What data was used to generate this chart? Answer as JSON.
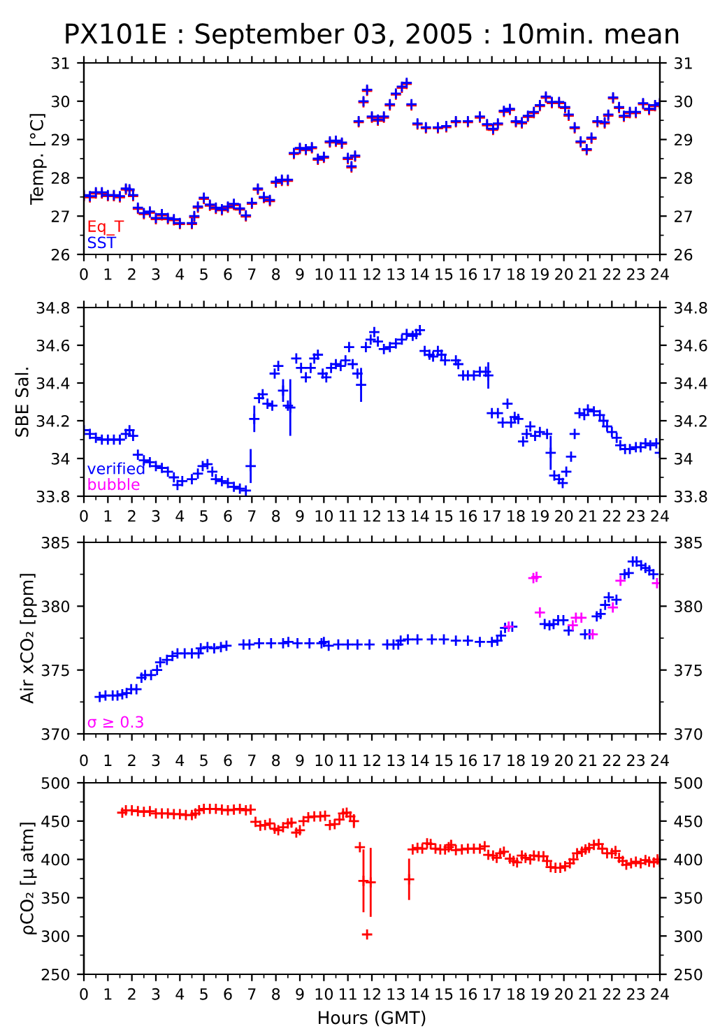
{
  "chart_data": [
    {
      "type": "scatter",
      "title": "PX101E : September 03, 2005 : 10min. mean",
      "ylabel": "Temp. [°C]",
      "marker": "cross",
      "legend": "bottom left",
      "xlim": [
        0,
        24
      ],
      "xticks": [
        0,
        1,
        2,
        3,
        4,
        5,
        6,
        7,
        8,
        9,
        10,
        11,
        12,
        13,
        14,
        15,
        16,
        17,
        18,
        19,
        20,
        21,
        22,
        23,
        24
      ],
      "ylim": [
        26,
        31
      ],
      "yticks": [
        26,
        27,
        28,
        29,
        30,
        31
      ],
      "y2lim": [
        26,
        31
      ],
      "y2ticks": [
        26,
        27,
        28,
        29,
        30,
        31
      ],
      "x": [
        0,
        0.25,
        0.5,
        0.75,
        1,
        1.25,
        1.5,
        1.75,
        1.9,
        2.05,
        2.25,
        2.5,
        2.75,
        3,
        3.25,
        3.5,
        3.75,
        4,
        4.5,
        4.6,
        4.75,
        5,
        5.25,
        5.5,
        5.75,
        6,
        6.25,
        6.5,
        6.75,
        7,
        7.25,
        7.5,
        7.75,
        8,
        8.25,
        8.5,
        8.75,
        9,
        9.25,
        9.5,
        9.75,
        10,
        10.25,
        10.5,
        10.75,
        11,
        11.15,
        11.3,
        11.45,
        11.65,
        11.8,
        12,
        12.25,
        12.5,
        12.75,
        13,
        13.25,
        13.45,
        13.65,
        13.9,
        14.25,
        14.75,
        15.1,
        15.5,
        16,
        16.5,
        16.8,
        17.05,
        17.25,
        17.5,
        17.75,
        18,
        18.25,
        18.5,
        18.75,
        19,
        19.25,
        19.5,
        19.8,
        20.05,
        20.2,
        20.45,
        20.7,
        20.95,
        21.15,
        21.4,
        21.7,
        21.85,
        22.05,
        22.3,
        22.5,
        22.75,
        23,
        23.3,
        23.55,
        23.8,
        24
      ],
      "series": [
        {
          "name": "Eq_T",
          "color": "#ff0000",
          "values": [
            27.52,
            27.49,
            27.59,
            27.59,
            27.52,
            27.52,
            27.49,
            27.69,
            27.67,
            27.52,
            27.19,
            27.05,
            27.09,
            26.92,
            27.02,
            26.92,
            26.89,
            26.79,
            26.79,
            26.97,
            27.22,
            27.45,
            27.27,
            27.19,
            27.15,
            27.22,
            27.29,
            27.17,
            26.99,
            27.32,
            27.69,
            27.47,
            27.39,
            27.87,
            27.92,
            27.92,
            28.62,
            28.75,
            28.72,
            28.77,
            28.47,
            28.52,
            28.92,
            28.94,
            28.89,
            28.49,
            28.27,
            28.55,
            29.45,
            29.97,
            30.27,
            29.57,
            29.49,
            29.57,
            29.89,
            30.17,
            30.35,
            30.45,
            29.89,
            29.39,
            29.29,
            29.29,
            29.32,
            29.45,
            29.45,
            29.57,
            29.37,
            29.25,
            29.39,
            29.72,
            29.77,
            29.45,
            29.42,
            29.59,
            29.69,
            29.87,
            30.09,
            29.95,
            29.95,
            29.82,
            29.62,
            29.29,
            28.92,
            28.72,
            29.02,
            29.45,
            29.42,
            29.62,
            30.07,
            29.82,
            29.59,
            29.69,
            29.69,
            29.92,
            29.77,
            29.87,
            29.92
          ]
        },
        {
          "name": "SST",
          "color": "#0000ff",
          "values": [
            27.55,
            27.52,
            27.62,
            27.62,
            27.55,
            27.55,
            27.52,
            27.72,
            27.7,
            27.55,
            27.22,
            27.08,
            27.12,
            26.95,
            27.05,
            26.95,
            26.92,
            26.82,
            26.82,
            27.0,
            27.25,
            27.48,
            27.3,
            27.22,
            27.18,
            27.25,
            27.32,
            27.2,
            27.02,
            27.35,
            27.72,
            27.5,
            27.42,
            27.9,
            27.95,
            27.95,
            28.65,
            28.78,
            28.75,
            28.8,
            28.5,
            28.55,
            28.95,
            28.97,
            28.92,
            28.52,
            28.3,
            28.58,
            29.48,
            30.0,
            30.3,
            29.6,
            29.52,
            29.6,
            29.92,
            30.2,
            30.38,
            30.48,
            29.92,
            29.42,
            29.32,
            29.32,
            29.35,
            29.48,
            29.48,
            29.6,
            29.4,
            29.28,
            29.42,
            29.75,
            29.8,
            29.48,
            29.45,
            29.62,
            29.72,
            29.9,
            30.12,
            29.98,
            29.98,
            29.85,
            29.65,
            29.32,
            28.95,
            28.75,
            29.05,
            29.48,
            29.45,
            29.65,
            30.1,
            29.85,
            29.62,
            29.72,
            29.72,
            29.95,
            29.8,
            29.9,
            29.95
          ]
        }
      ]
    },
    {
      "type": "scatter",
      "ylabel": "SBE Sal.",
      "marker": "cross",
      "legend": "bottom left",
      "xlim": [
        0,
        24
      ],
      "xticks": [
        0,
        1,
        2,
        3,
        4,
        5,
        6,
        7,
        8,
        9,
        10,
        11,
        12,
        13,
        14,
        15,
        16,
        17,
        18,
        19,
        20,
        21,
        22,
        23,
        24
      ],
      "ylim": [
        33.8,
        34.8
      ],
      "yticks": [
        {
          "value": 33.8,
          "label": "33.8"
        },
        {
          "value": 34,
          "label": "34"
        },
        {
          "value": 34.2,
          "label": "34.2"
        },
        {
          "value": 34.4,
          "label": "34.4"
        },
        {
          "value": 34.6,
          "label": "34.6"
        },
        {
          "value": 34.8,
          "label": "34.8"
        }
      ],
      "y2lim": [
        33.8,
        34.8
      ],
      "y2ticks": [
        {
          "value": 33.8,
          "label": "33.8"
        },
        {
          "value": 34,
          "label": "34"
        },
        {
          "value": 34.2,
          "label": "34.2"
        },
        {
          "value": 34.4,
          "label": "34.4"
        },
        {
          "value": 34.6,
          "label": "34.6"
        },
        {
          "value": 34.8,
          "label": "34.8"
        }
      ],
      "series": [
        {
          "name": "verified",
          "color": "#0000ff",
          "x": [
            0,
            0.25,
            0.5,
            0.75,
            1,
            1.25,
            1.5,
            1.75,
            1.9,
            2.05,
            2.25,
            2.5,
            2.75,
            3,
            3.25,
            3.5,
            3.75,
            3.9,
            4.1,
            4.5,
            4.75,
            4.95,
            5.15,
            5.35,
            5.5,
            5.75,
            6,
            6.25,
            6.5,
            6.75,
            6.95,
            7.1,
            7.3,
            7.45,
            7.65,
            7.85,
            7.95,
            8.1,
            8.3,
            8.5,
            8.6,
            8.85,
            9.05,
            9.25,
            9.45,
            9.6,
            9.75,
            9.95,
            10.1,
            10.3,
            10.5,
            10.7,
            10.9,
            11.05,
            11.2,
            11.4,
            11.55,
            11.75,
            11.95,
            12.1,
            12.25,
            12.5,
            12.75,
            13,
            13.25,
            13.45,
            13.7,
            13.85,
            14,
            14.2,
            14.4,
            14.55,
            14.75,
            14.9,
            15.05,
            15.5,
            15.6,
            15.8,
            16,
            16.25,
            16.5,
            16.75,
            16.85,
            17,
            17.25,
            17.45,
            17.65,
            17.8,
            17.95,
            18.1,
            18.3,
            18.45,
            18.6,
            18.8,
            19,
            19.3,
            19.45,
            19.6,
            19.8,
            19.95,
            20.1,
            20.3,
            20.45,
            20.65,
            20.85,
            21,
            21.25,
            21.5,
            21.65,
            21.8,
            22,
            22.2,
            22.35,
            22.55,
            22.75,
            23,
            23.2,
            23.4,
            23.6,
            23.85,
            24
          ],
          "values": [
            34.15,
            34.13,
            34.11,
            34.1,
            34.1,
            34.1,
            34.1,
            34.13,
            34.15,
            34.12,
            34.02,
            33.99,
            33.98,
            33.96,
            33.95,
            33.93,
            33.9,
            33.86,
            33.88,
            33.89,
            33.92,
            33.96,
            33.97,
            33.93,
            33.89,
            33.88,
            33.87,
            33.85,
            33.84,
            33.83,
            33.96,
            34.21,
            34.32,
            34.34,
            34.29,
            34.28,
            34.45,
            34.49,
            34.36,
            34.28,
            34.27,
            34.53,
            34.48,
            34.43,
            34.48,
            34.53,
            34.55,
            34.45,
            34.43,
            34.48,
            34.5,
            34.49,
            34.52,
            34.59,
            34.5,
            34.45,
            34.39,
            34.59,
            34.63,
            34.67,
            34.62,
            34.58,
            34.59,
            34.61,
            34.63,
            34.66,
            34.65,
            34.66,
            34.68,
            34.57,
            34.55,
            34.54,
            34.57,
            34.55,
            34.52,
            34.52,
            34.5,
            34.44,
            34.44,
            34.44,
            34.46,
            34.46,
            34.44,
            34.24,
            34.24,
            34.19,
            34.29,
            34.19,
            34.22,
            34.21,
            34.09,
            34.13,
            34.17,
            34.12,
            34.14,
            34.13,
            34.03,
            33.91,
            33.89,
            33.87,
            33.93,
            34.01,
            34.13,
            34.24,
            34.23,
            34.26,
            34.25,
            34.23,
            34.2,
            34.17,
            34.14,
            34.11,
            34.07,
            34.05,
            34.05,
            34.06,
            34.06,
            34.08,
            34.07,
            34.08,
            34.03
          ],
          "errors": [
            null,
            null,
            null,
            null,
            null,
            null,
            null,
            null,
            null,
            null,
            null,
            null,
            null,
            null,
            null,
            null,
            null,
            null,
            null,
            null,
            null,
            null,
            null,
            null,
            null,
            null,
            null,
            null,
            null,
            null,
            0.09,
            0.07,
            null,
            null,
            null,
            null,
            null,
            null,
            0.06,
            null,
            0.15,
            null,
            null,
            null,
            null,
            null,
            null,
            null,
            null,
            null,
            null,
            null,
            null,
            null,
            null,
            null,
            0.09,
            null,
            null,
            null,
            null,
            null,
            null,
            null,
            null,
            null,
            null,
            null,
            null,
            null,
            null,
            null,
            null,
            null,
            null,
            null,
            null,
            null,
            null,
            null,
            null,
            null,
            0.07,
            null,
            null,
            null,
            null,
            null,
            null,
            null,
            null,
            null,
            null,
            null,
            null,
            null,
            0.09,
            null,
            null,
            null,
            null,
            null,
            null,
            null,
            null,
            null,
            null,
            null,
            null,
            null,
            null,
            null,
            null,
            null,
            null,
            null,
            null,
            null,
            null,
            null,
            null
          ]
        },
        {
          "name": "bubble",
          "color": "#ff00ff"
        }
      ]
    },
    {
      "type": "scatter",
      "ylabel": "Air xCO₂ [ppm]",
      "marker": "cross",
      "legend": "bottom left",
      "tick_labels": "y",
      "xlim": [
        0,
        24
      ],
      "xticks": [
        0,
        1,
        2,
        3,
        4,
        5,
        6,
        7,
        8,
        9,
        10,
        11,
        12,
        13,
        14,
        15,
        16,
        17,
        18,
        19,
        20,
        21,
        22,
        23,
        24
      ],
      "ylim": [
        370,
        385
      ],
      "yticks": [
        370,
        375,
        380,
        385
      ],
      "y2lim": [
        370,
        385
      ],
      "y2ticks": [
        370,
        375,
        380,
        385
      ],
      "series": [
        {
          "color": "#0000ff",
          "x": [
            0.66,
            0.9,
            1.2,
            1.4,
            1.6,
            1.78,
            1.97,
            2.19,
            2.4,
            2.55,
            2.8,
            3.05,
            3.18,
            3.46,
            3.69,
            3.9,
            4.2,
            4.5,
            4.78,
            4.87,
            5.15,
            5.43,
            5.71,
            5.94,
            6.65,
            6.9,
            7.3,
            7.8,
            8.3,
            8.52,
            8.9,
            9.4,
            9.9,
            10.0,
            10.2,
            10.6,
            11.0,
            11.4,
            11.9,
            12.64,
            12.9,
            13.1,
            13.2,
            13.5,
            13.9,
            14.5,
            15.0,
            15.5,
            16.0,
            16.5,
            17.0,
            17.23,
            17.38,
            17.55,
            17.85,
            19.2,
            19.4,
            19.57,
            19.76,
            19.98,
            20.2,
            20.88,
            21.07,
            21.37,
            21.53,
            21.72,
            21.87,
            22.19,
            22.53,
            22.7,
            22.87,
            23.03,
            23.22,
            23.4,
            23.56,
            23.73
          ],
          "values": [
            372.9,
            373.0,
            373.0,
            373.0,
            373.1,
            373.2,
            373.5,
            373.5,
            374.4,
            374.6,
            374.6,
            375.0,
            375.6,
            375.8,
            376.1,
            376.3,
            376.3,
            376.3,
            376.3,
            376.7,
            376.8,
            376.7,
            376.8,
            376.9,
            377.0,
            377.0,
            377.1,
            377.1,
            377.1,
            377.2,
            377.1,
            377.1,
            377.1,
            377.2,
            376.9,
            377.0,
            377.0,
            377.0,
            377.0,
            377.0,
            377.0,
            377.0,
            377.3,
            377.4,
            377.4,
            377.4,
            377.4,
            377.3,
            377.3,
            377.2,
            377.2,
            377.3,
            377.7,
            378.3,
            378.4,
            378.6,
            378.5,
            378.6,
            378.9,
            378.9,
            378.1,
            377.8,
            377.8,
            379.2,
            379.4,
            380.1,
            380.7,
            380.5,
            382.5,
            382.6,
            383.5,
            383.5,
            383.2,
            383.0,
            382.8,
            382.5
          ]
        },
        {
          "name": "σ ≥ 0.3",
          "color": "#ff00ff",
          "x": [
            17.7,
            18.73,
            18.86,
            19.0,
            20.37,
            20.5,
            20.73,
            21.2,
            22.04,
            22.36,
            23.88
          ],
          "values": [
            378.4,
            382.2,
            382.3,
            379.5,
            378.5,
            379.1,
            379.1,
            377.8,
            379.9,
            382.0,
            381.8
          ]
        }
      ]
    },
    {
      "type": "scatter",
      "ylabel": "ρCO₂ [μ atm]",
      "xlabel": "Hours (GMT)",
      "marker": "cross",
      "xlim": [
        0,
        24
      ],
      "xticks": [
        0,
        1,
        2,
        3,
        4,
        5,
        6,
        7,
        8,
        9,
        10,
        11,
        12,
        13,
        14,
        15,
        16,
        17,
        18,
        19,
        20,
        21,
        22,
        23,
        24
      ],
      "x2lim": [
        0,
        24
      ],
      "x2ticks": [
        0,
        1,
        2,
        3,
        4,
        5,
        6,
        7,
        8,
        9,
        10,
        11,
        12,
        13,
        14,
        15,
        16,
        17,
        18,
        19,
        20,
        21,
        22,
        23,
        24
      ],
      "ylim": [
        250,
        500
      ],
      "yticks": [
        250,
        300,
        350,
        400,
        450,
        500
      ],
      "y2lim": [
        250,
        500
      ],
      "y2ticks": [
        250,
        300,
        350,
        400,
        450,
        500
      ],
      "series": [
        {
          "color": "#ff0000",
          "x": [
            1.6,
            1.75,
            2,
            2.25,
            2.5,
            2.75,
            3,
            3.25,
            3.5,
            3.75,
            4,
            4.25,
            4.5,
            4.65,
            4.8,
            5,
            5.25,
            5.5,
            5.75,
            6,
            6.25,
            6.5,
            6.75,
            6.95,
            7.15,
            7.35,
            7.55,
            7.75,
            7.95,
            8.1,
            8.3,
            8.5,
            8.65,
            8.85,
            9.0,
            9.15,
            9.35,
            9.6,
            9.85,
            10.05,
            10.25,
            10.45,
            10.65,
            10.8,
            10.95,
            11.1,
            11.25,
            11.5,
            11.65,
            11.8,
            11.95,
            13.55,
            13.7,
            13.9,
            14.1,
            14.3,
            14.45,
            14.65,
            14.85,
            15.05,
            15.2,
            15.3,
            15.5,
            15.75,
            16,
            16.25,
            16.5,
            16.7,
            16.85,
            17.05,
            17.2,
            17.35,
            17.5,
            17.75,
            17.9,
            18.05,
            18.25,
            18.4,
            18.6,
            18.75,
            18.95,
            19.15,
            19.3,
            19.45,
            19.65,
            19.85,
            20.05,
            20.25,
            20.4,
            20.55,
            20.75,
            20.9,
            21.05,
            21.25,
            21.45,
            21.6,
            21.8,
            22.0,
            22.15,
            22.3,
            22.45,
            22.6,
            22.8,
            23.0,
            23.2,
            23.4,
            23.55,
            23.75,
            23.9,
            24
          ],
          "values": [
            461,
            464,
            464,
            463,
            462,
            463,
            460,
            460,
            460,
            459,
            459,
            458,
            458,
            460,
            464,
            466,
            466,
            466,
            465,
            464,
            465,
            466,
            464,
            465,
            449,
            444,
            445,
            447,
            440,
            438,
            442,
            447,
            448,
            435,
            438,
            450,
            455,
            456,
            456,
            457,
            445,
            446,
            452,
            460,
            461,
            456,
            450,
            416,
            372,
            302,
            370,
            374,
            413,
            415,
            414,
            421,
            420,
            414,
            413,
            413,
            416,
            419,
            412,
            413,
            414,
            414,
            414,
            417,
            406,
            405,
            402,
            408,
            410,
            401,
            398,
            396,
            405,
            402,
            400,
            405,
            404,
            404,
            398,
            390,
            389,
            389,
            391,
            395,
            400,
            408,
            410,
            413,
            415,
            419,
            420,
            414,
            408,
            408,
            411,
            402,
            398,
            393,
            395,
            397,
            395,
            399,
            397,
            396,
            400,
            397
          ],
          "errors": [
            null,
            null,
            null,
            null,
            null,
            null,
            null,
            null,
            null,
            null,
            null,
            null,
            null,
            null,
            null,
            null,
            null,
            null,
            null,
            null,
            null,
            null,
            null,
            6,
            null,
            null,
            null,
            null,
            null,
            null,
            null,
            null,
            6,
            null,
            null,
            null,
            null,
            null,
            null,
            null,
            null,
            null,
            null,
            null,
            null,
            null,
            9,
            null,
            41,
            null,
            45,
            27,
            null,
            null,
            null,
            null,
            null,
            null,
            null,
            null,
            null,
            6,
            null,
            null,
            null,
            null,
            null,
            null,
            null,
            null,
            null,
            5,
            null,
            null,
            null,
            null,
            null,
            null,
            null,
            null,
            null,
            null,
            5,
            null,
            null,
            null,
            null,
            null,
            null,
            null,
            null,
            null,
            null,
            null,
            null,
            null,
            null,
            null,
            null,
            null,
            null,
            null,
            null,
            null,
            null,
            null,
            null,
            null,
            null,
            null
          ]
        }
      ]
    }
  ]
}
